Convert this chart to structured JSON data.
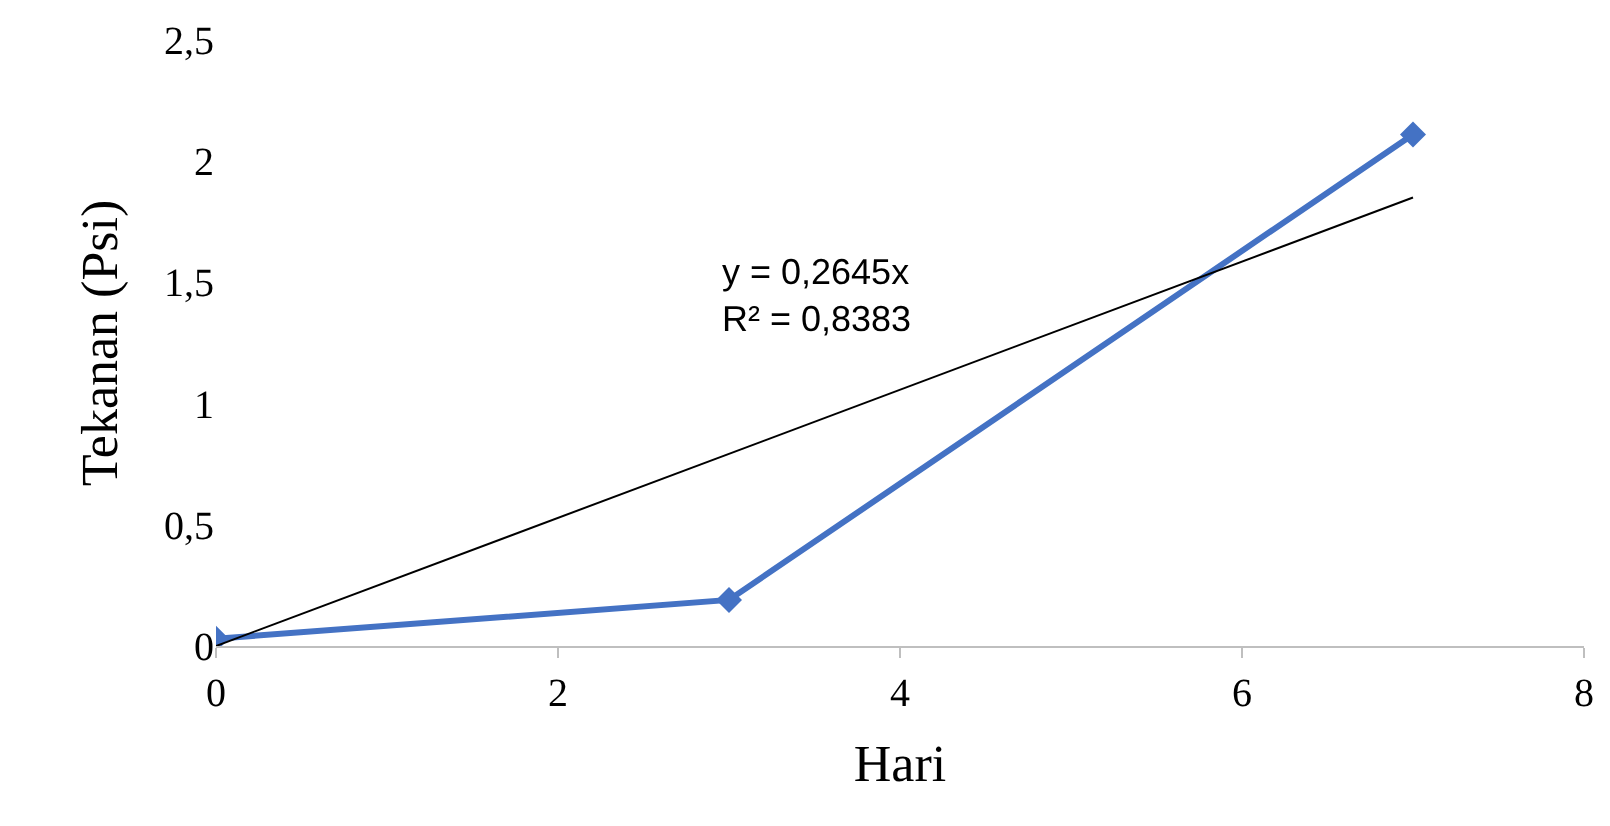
{
  "chart_data": {
    "type": "line",
    "xlabel": "Hari",
    "ylabel": "Tekanan (Psi)",
    "xlim": [
      0,
      8
    ],
    "xticks": [
      0,
      2,
      4,
      6,
      8
    ],
    "ylim": [
      0,
      2.5
    ],
    "yticks": [
      0,
      {
        "value": 0.5,
        "label": "0,5"
      },
      1,
      {
        "value": 1.5,
        "label": "1,5"
      },
      2,
      {
        "value": 2.5,
        "label": "2,5"
      }
    ],
    "grid": false,
    "series": [
      {
        "color": "#4472c4",
        "x": [
          0,
          3,
          7
        ],
        "values": [
          0.03,
          0.19,
          2.11
        ],
        "marker": "diamond",
        "line_style": "solid"
      },
      {
        "color": "#000000",
        "x": [
          0,
          7
        ],
        "values": [
          0,
          1.85
        ],
        "marker": "none",
        "line_style": "solid"
      }
    ],
    "annotations": [
      "y = 0,2645x\nR² = 0,8383"
    ]
  }
}
